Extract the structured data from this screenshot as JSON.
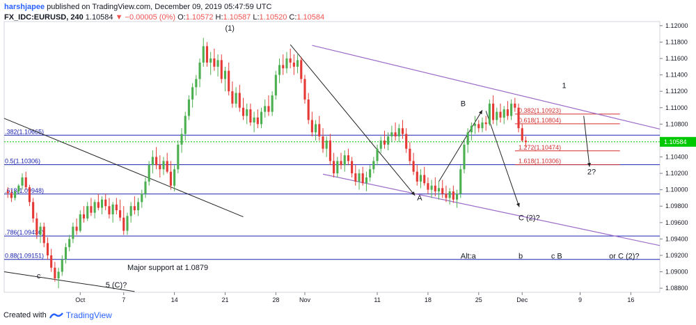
{
  "header": {
    "user": "harshjapee",
    "published": "published on TradingView.com, December 09, 2019 05:47:59 UTC",
    "symbol": "FX_IDC:EURUSD, 240",
    "last": "1.10584",
    "change": "▼ −0.00005 (0%)",
    "o_label": "O:",
    "o_value": "1.10572",
    "h_label": "H:",
    "h_value": "1.10587",
    "l_label": "L:",
    "l_value": "1.10520",
    "c_label": "C:",
    "c_value": "1.10584"
  },
  "footer": {
    "created_with": "Created with",
    "brand": "TradingView"
  },
  "colors": {
    "up": "#26a69a",
    "down": "#ef5350",
    "up_candle": "#4caf50",
    "down_candle": "#e53935",
    "fib_blue": "#1a23b0",
    "channel": "#9c6bc9",
    "last_price": "#00c800",
    "fib_red": "#d32f2f"
  },
  "chart_data": {
    "type": "candlestick",
    "ylim": [
      1.0875,
      1.1205
    ],
    "y_ticks": [
      "1.12000",
      "1.11800",
      "1.11600",
      "1.11400",
      "1.11200",
      "1.11000",
      "1.10800",
      "1.10600",
      "1.10400",
      "1.10200",
      "1.10000",
      "1.09800",
      "1.09600",
      "1.09400",
      "1.09200",
      "1.09000",
      "1.08800"
    ],
    "y_tick_values": [
      1.12,
      1.118,
      1.116,
      1.114,
      1.112,
      1.11,
      1.108,
      1.106,
      1.104,
      1.102,
      1.1,
      1.098,
      1.096,
      1.094,
      1.092,
      1.09,
      1.088
    ],
    "x_ticks": [
      "Oct",
      "7",
      "14",
      "21",
      "28",
      "Nov",
      "11",
      "18",
      "25",
      "Dec",
      "9",
      "16"
    ],
    "x_tick_days": [
      1,
      7,
      14,
      21,
      28,
      32,
      42,
      49,
      56,
      62,
      70,
      77
    ],
    "last_price_label": "1.10584",
    "last_price": 1.10584,
    "fib_levels": [
      {
        "label": ".382(1.10665)",
        "value": 1.10665
      },
      {
        "label": "0.5(1.10306)",
        "value": 1.10306
      },
      {
        "label": ".618(1.09948)",
        "value": 1.09948
      },
      {
        "label": ".786(1.09436)",
        "value": 1.09436
      },
      {
        "label": "0.88(1.09151)",
        "value": 1.09151
      }
    ],
    "fib_ext_levels": [
      {
        "label": "0.382(1.10923)",
        "value": 1.10923
      },
      {
        "label": "0.618(1.10804)",
        "value": 1.10804
      },
      {
        "label": "1.272(1.10474)",
        "value": 1.10474
      },
      {
        "label": "1.618(1.10306)",
        "value": 1.10306
      }
    ],
    "annotations": [
      {
        "text": "(1)",
        "day": 21,
        "price": 1.1194
      },
      {
        "text": "A",
        "day": 47.5,
        "price": 1.0987
      },
      {
        "text": "B",
        "day": 53.5,
        "price": 1.1102
      },
      {
        "text": "1",
        "day": 67.5,
        "price": 1.1124
      },
      {
        "text": "2?",
        "day": 71,
        "price": 1.1019
      },
      {
        "text": "C (2)?",
        "day": 61.5,
        "price": 1.0963
      },
      {
        "text": "c",
        "day": -5,
        "price": 1.0892
      },
      {
        "text": "5 (C)?",
        "day": 4.5,
        "price": 1.0881
      },
      {
        "text": "Major support at 1.0879",
        "day": 7.5,
        "price": 1.0902
      },
      {
        "text": "Alt:a",
        "day": 53.5,
        "price": 1.0916
      },
      {
        "text": "b",
        "day": 61.5,
        "price": 1.0916
      },
      {
        "text": "c B",
        "day": 66,
        "price": 1.0916
      },
      {
        "text": "or C (2)?",
        "day": 74,
        "price": 1.0916
      }
    ],
    "candles": [
      [
        -9,
        1.0998,
        1.1003,
        1.099,
        1.0996
      ],
      [
        -8.5,
        1.0996,
        1.1,
        1.0985,
        1.099
      ],
      [
        -8,
        1.099,
        1.0999,
        1.0987,
        1.0998
      ],
      [
        -7.5,
        1.0998,
        1.1007,
        1.0995,
        1.1005
      ],
      [
        -7,
        1.1005,
        1.102,
        1.1,
        1.1015
      ],
      [
        -6.5,
        1.1015,
        1.1022,
        1.1,
        1.1003
      ],
      [
        -6,
        1.1003,
        1.1006,
        1.098,
        1.0985
      ],
      [
        -5.5,
        1.0985,
        1.099,
        1.096,
        1.0965
      ],
      [
        -5,
        1.0965,
        1.0972,
        1.094,
        1.0945
      ],
      [
        -4.5,
        1.0945,
        1.096,
        1.0935,
        1.0955
      ],
      [
        -4,
        1.0955,
        1.096,
        1.093,
        1.0935
      ],
      [
        -3.5,
        1.0935,
        1.0942,
        1.0915,
        1.092
      ],
      [
        -3,
        1.092,
        1.0928,
        1.09,
        1.0905
      ],
      [
        -2.5,
        1.0905,
        1.0912,
        1.0888,
        1.0892
      ],
      [
        -2,
        1.0892,
        1.0905,
        1.088,
        1.09
      ],
      [
        -1.5,
        1.09,
        1.092,
        1.0895,
        1.0915
      ],
      [
        -1,
        1.0915,
        1.0935,
        1.091,
        1.093
      ],
      [
        -0.5,
        1.093,
        1.0945,
        1.0925,
        1.094
      ],
      [
        0,
        1.094,
        1.096,
        1.0935,
        1.0955
      ],
      [
        0.5,
        1.0955,
        1.0965,
        1.0945,
        1.095
      ],
      [
        1,
        1.095,
        1.0975,
        1.0948,
        1.097
      ],
      [
        1.5,
        1.097,
        1.098,
        1.096,
        1.0965
      ],
      [
        2,
        1.0965,
        1.0985,
        1.0962,
        1.098
      ],
      [
        2.5,
        1.098,
        1.099,
        1.0968,
        1.0972
      ],
      [
        3,
        1.0972,
        1.0988,
        1.0965,
        1.0985
      ],
      [
        3.5,
        1.0985,
        1.0995,
        1.0975,
        1.0978
      ],
      [
        4,
        1.0978,
        1.0992,
        1.097,
        1.0988
      ],
      [
        4.5,
        1.0988,
        1.0995,
        1.0975,
        1.098
      ],
      [
        5,
        1.098,
        1.099,
        1.0965,
        1.097
      ],
      [
        5.5,
        1.097,
        1.0985,
        1.096,
        1.0982
      ],
      [
        6,
        1.0982,
        1.099,
        1.097,
        1.0975
      ],
      [
        6.5,
        1.0975,
        1.0988,
        1.0962,
        1.0966
      ],
      [
        7,
        1.0966,
        1.098,
        1.0945,
        1.095
      ],
      [
        7.5,
        1.095,
        1.0972,
        1.0945,
        1.0968
      ],
      [
        8,
        1.0968,
        1.0985,
        1.096,
        1.098
      ],
      [
        8.5,
        1.098,
        1.0992,
        1.097,
        1.0975
      ],
      [
        9,
        1.0975,
        1.099,
        1.0968,
        1.0985
      ],
      [
        9.5,
        1.0985,
        1.1,
        1.0978,
        1.0995
      ],
      [
        10,
        1.0995,
        1.1015,
        1.099,
        1.101
      ],
      [
        10.5,
        1.101,
        1.1035,
        1.1005,
        1.103
      ],
      [
        11,
        1.103,
        1.1048,
        1.102,
        1.104
      ],
      [
        11.5,
        1.104,
        1.1052,
        1.1025,
        1.103
      ],
      [
        12,
        1.103,
        1.1042,
        1.1015,
        1.1025
      ],
      [
        12.5,
        1.1025,
        1.104,
        1.1018,
        1.1035
      ],
      [
        13,
        1.1035,
        1.1045,
        1.102,
        1.1022
      ],
      [
        13.5,
        1.1022,
        1.1035,
        1.1,
        1.1005
      ],
      [
        14,
        1.1005,
        1.103,
        1.0998,
        1.1025
      ],
      [
        14.5,
        1.1025,
        1.106,
        1.102,
        1.1055
      ],
      [
        15,
        1.1055,
        1.1075,
        1.1045,
        1.1068
      ],
      [
        15.5,
        1.1068,
        1.1095,
        1.106,
        1.109
      ],
      [
        16,
        1.109,
        1.1115,
        1.1085,
        1.111
      ],
      [
        16.5,
        1.111,
        1.113,
        1.11,
        1.1125
      ],
      [
        17,
        1.1125,
        1.114,
        1.1115,
        1.1135
      ],
      [
        17.5,
        1.1135,
        1.116,
        1.1125,
        1.1155
      ],
      [
        18,
        1.1155,
        1.1185,
        1.115,
        1.1175
      ],
      [
        18.5,
        1.1175,
        1.118,
        1.115,
        1.1155
      ],
      [
        19,
        1.1155,
        1.1168,
        1.114,
        1.116
      ],
      [
        19.5,
        1.116,
        1.1172,
        1.1145,
        1.115
      ],
      [
        20,
        1.115,
        1.1165,
        1.1138,
        1.1158
      ],
      [
        20.5,
        1.1158,
        1.1165,
        1.113,
        1.1135
      ],
      [
        21,
        1.1135,
        1.115,
        1.112,
        1.1145
      ],
      [
        21.5,
        1.1145,
        1.1155,
        1.1115,
        1.112
      ],
      [
        22,
        1.112,
        1.1132,
        1.11,
        1.1105
      ],
      [
        22.5,
        1.1105,
        1.1125,
        1.11,
        1.1118
      ],
      [
        23,
        1.1118,
        1.1128,
        1.1095,
        1.11
      ],
      [
        23.5,
        1.11,
        1.1112,
        1.1085,
        1.109
      ],
      [
        24,
        1.109,
        1.1105,
        1.108,
        1.1098
      ],
      [
        24.5,
        1.1098,
        1.1105,
        1.1078,
        1.1082
      ],
      [
        25,
        1.1082,
        1.1095,
        1.107,
        1.1088
      ],
      [
        25.5,
        1.1088,
        1.1098,
        1.1075,
        1.108
      ],
      [
        26,
        1.108,
        1.11,
        1.1075,
        1.1095
      ],
      [
        26.5,
        1.1095,
        1.111,
        1.1088,
        1.1102
      ],
      [
        27,
        1.1102,
        1.1115,
        1.109,
        1.1095
      ],
      [
        27.5,
        1.1095,
        1.112,
        1.109,
        1.1115
      ],
      [
        28,
        1.1115,
        1.1145,
        1.111,
        1.114
      ],
      [
        28.5,
        1.114,
        1.116,
        1.113,
        1.1152
      ],
      [
        29,
        1.1152,
        1.1165,
        1.114,
        1.1148
      ],
      [
        29.5,
        1.1148,
        1.1168,
        1.1142,
        1.116
      ],
      [
        30,
        1.116,
        1.1172,
        1.1148,
        1.1155
      ],
      [
        30.5,
        1.1155,
        1.1165,
        1.114,
        1.115
      ],
      [
        31,
        1.115,
        1.1165,
        1.1142,
        1.1158
      ],
      [
        31.5,
        1.1158,
        1.1162,
        1.113,
        1.1135
      ],
      [
        32,
        1.1135,
        1.114,
        1.1105,
        1.111
      ],
      [
        32.5,
        1.111,
        1.1118,
        1.108,
        1.1085
      ],
      [
        33,
        1.1085,
        1.1095,
        1.1065,
        1.107
      ],
      [
        33.5,
        1.107,
        1.1085,
        1.106,
        1.108
      ],
      [
        34,
        1.108,
        1.109,
        1.106,
        1.1065
      ],
      [
        34.5,
        1.1065,
        1.1075,
        1.1045,
        1.105
      ],
      [
        35,
        1.105,
        1.1065,
        1.104,
        1.106
      ],
      [
        35.5,
        1.106,
        1.1068,
        1.103,
        1.1035
      ],
      [
        36,
        1.1035,
        1.1045,
        1.1015,
        1.102
      ],
      [
        36.5,
        1.102,
        1.104,
        1.1015,
        1.1035
      ],
      [
        37,
        1.1035,
        1.1045,
        1.1025,
        1.103
      ],
      [
        37.5,
        1.103,
        1.1048,
        1.1022,
        1.1042
      ],
      [
        38,
        1.1042,
        1.105,
        1.103,
        1.1035
      ],
      [
        38.5,
        1.1035,
        1.104,
        1.1015,
        1.102
      ],
      [
        39,
        1.102,
        1.103,
        1.1005,
        1.101
      ],
      [
        39.5,
        1.101,
        1.1025,
        1.1,
        1.102
      ],
      [
        40,
        1.102,
        1.1028,
        1.1005,
        1.1008
      ],
      [
        40.5,
        1.1008,
        1.1022,
        1.0998,
        1.1015
      ],
      [
        41,
        1.1015,
        1.103,
        1.101,
        1.1025
      ],
      [
        41.5,
        1.1025,
        1.104,
        1.102,
        1.1035
      ],
      [
        42,
        1.1035,
        1.1055,
        1.103,
        1.105
      ],
      [
        42.5,
        1.105,
        1.1065,
        1.1045,
        1.106
      ],
      [
        43,
        1.106,
        1.1072,
        1.105,
        1.1055
      ],
      [
        43.5,
        1.1055,
        1.107,
        1.1048,
        1.1065
      ],
      [
        44,
        1.1065,
        1.1078,
        1.1058,
        1.107
      ],
      [
        44.5,
        1.107,
        1.1082,
        1.106,
        1.1065
      ],
      [
        45,
        1.1065,
        1.108,
        1.1058,
        1.1075
      ],
      [
        45.5,
        1.1075,
        1.1085,
        1.1062,
        1.1068
      ],
      [
        46,
        1.1068,
        1.1075,
        1.1045,
        1.105
      ],
      [
        46.5,
        1.105,
        1.1058,
        1.103,
        1.1035
      ],
      [
        47,
        1.1035,
        1.1045,
        1.1018,
        1.1022
      ],
      [
        47.5,
        1.1022,
        1.103,
        1.1005,
        1.101
      ],
      [
        48,
        1.101,
        1.1025,
        1.1002,
        1.1018
      ],
      [
        48.5,
        1.1018,
        1.1028,
        1.1005,
        1.1008
      ],
      [
        49,
        1.1008,
        1.1015,
        1.0995,
        1.1
      ],
      [
        49.5,
        1.1,
        1.1012,
        1.099,
        1.1005
      ],
      [
        50,
        1.1005,
        1.1015,
        1.0992,
        1.0998
      ],
      [
        50.5,
        1.0998,
        1.101,
        1.0988,
        1.1002
      ],
      [
        51,
        1.1002,
        1.1012,
        1.099,
        1.0995
      ],
      [
        51.5,
        1.0995,
        1.1005,
        1.0985,
        1.099
      ],
      [
        52,
        1.099,
        1.1002,
        1.0982,
        1.0998
      ],
      [
        52.5,
        1.0998,
        1.1005,
        1.0984,
        1.0988
      ],
      [
        53,
        1.0988,
        1.1,
        1.0978,
        1.0995
      ],
      [
        53.5,
        1.0995,
        1.103,
        1.099,
        1.1025
      ],
      [
        54,
        1.1025,
        1.106,
        1.102,
        1.1055
      ],
      [
        54.5,
        1.1055,
        1.1075,
        1.1045,
        1.107
      ],
      [
        55,
        1.107,
        1.1082,
        1.106,
        1.1078
      ],
      [
        55.5,
        1.1078,
        1.109,
        1.1068,
        1.108
      ],
      [
        56,
        1.108,
        1.1085,
        1.107,
        1.1075
      ],
      [
        56.5,
        1.1075,
        1.1088,
        1.107,
        1.1082
      ],
      [
        57,
        1.1082,
        1.109,
        1.1072,
        1.108
      ],
      [
        57.5,
        1.108,
        1.111,
        1.1078,
        1.1105
      ],
      [
        58,
        1.1105,
        1.1115,
        1.108,
        1.1085
      ],
      [
        58.5,
        1.1085,
        1.11,
        1.1078,
        1.1095
      ],
      [
        59,
        1.1095,
        1.1105,
        1.1082,
        1.1088
      ],
      [
        59.5,
        1.1088,
        1.1102,
        1.108,
        1.1098
      ],
      [
        60,
        1.1098,
        1.1108,
        1.1085,
        1.109
      ],
      [
        60.5,
        1.109,
        1.111,
        1.1085,
        1.1105
      ],
      [
        61,
        1.1105,
        1.1112,
        1.1095,
        1.11
      ],
      [
        61.5,
        1.11,
        1.1105,
        1.107,
        1.1075
      ],
      [
        62,
        1.1075,
        1.108,
        1.1058,
        1.106
      ],
      [
        62.5,
        1.106,
        1.1065,
        1.1052,
        1.1058
      ]
    ]
  }
}
